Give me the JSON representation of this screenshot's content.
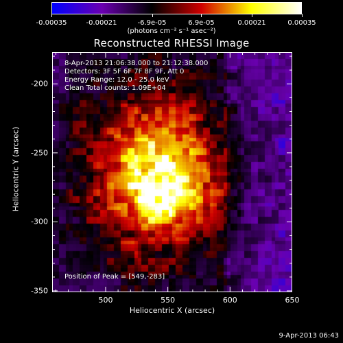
{
  "colorbar": {
    "ticks": [
      "-0.00035",
      "-0.00021",
      "-6.9e-05",
      "6.9e-05",
      "0.00021",
      "0.00035"
    ],
    "tick_values": [
      -0.00035,
      -0.00021,
      -6.9e-05,
      6.9e-05,
      0.00021,
      0.00035
    ],
    "units": "(photons cm⁻² s⁻¹ asec⁻²)",
    "range": [
      -0.00035,
      0.00035
    ],
    "colors": [
      "#0000ff",
      "#6a00b0",
      "#000000",
      "#d00000",
      "#ffff00",
      "#ffffff"
    ]
  },
  "chart_data": {
    "type": "heatmap",
    "title": "Reconstructed RHESSI Image",
    "xlabel": "Heliocentric X (arcsec)",
    "ylabel": "Heliocentric Y (arcsec)",
    "xlim": [
      457,
      650
    ],
    "ylim": [
      -351,
      -177
    ],
    "xticks": [
      "500",
      "550",
      "600",
      "650"
    ],
    "xtick_values": [
      500,
      550,
      600,
      650
    ],
    "yticks": [
      "-200",
      "-250",
      "-300",
      "-350"
    ],
    "ytick_values": [
      -200,
      -250,
      -300,
      -350
    ],
    "peak": [
      549,
      -283
    ],
    "bright_region_center": [
      540,
      -265
    ],
    "annotations": [
      "8-Apr-2013 21:06:38.000 to 21:12:38.000",
      "Detectors: 3F 5F 6F 7F 8F 9F, Att 0",
      "Energy Range: 12.0 - 25.0 keV",
      "Clean    Total counts: 1.09E+04"
    ],
    "peak_label": "Position of Peak = [549,-283]"
  },
  "timestamp": "9-Apr-2013 06:43"
}
